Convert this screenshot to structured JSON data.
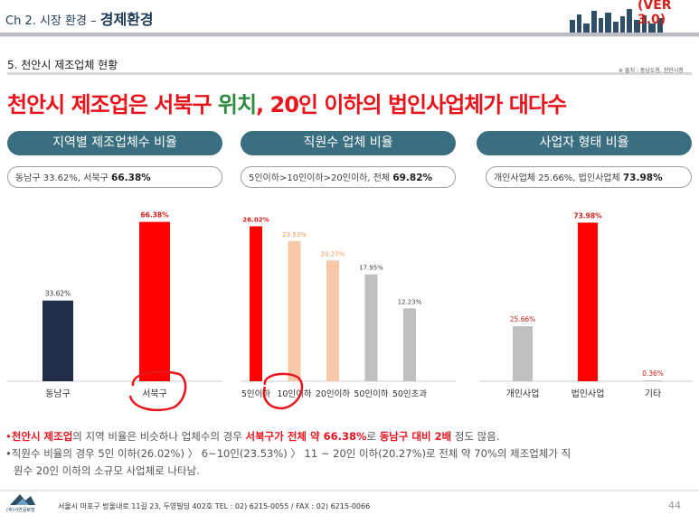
{
  "header": {
    "chapter": "Ch 2. 시장 환경",
    "dash": " – ",
    "title": "경제환경",
    "version": "(VER 3.0)"
  },
  "section_title": "5. 천안시 제조업체 현황",
  "source": "※ 출처 : 충남도청, 천안시청",
  "headline": {
    "part1": "천안시 제조업은 ",
    "part2": "서북구",
    "part3": " 위치",
    "part4": ", 20인 이하의 법인사업체가 대다수"
  },
  "panels": [
    {
      "title": "지역별 제조업체수 비율",
      "summary_text": "동남구 33.62%, 서북구 ",
      "summary_bold": "66.38%"
    },
    {
      "title": "직원수 업체 비율",
      "summary_text": "5인이하>10인이하>20인이하, 전체 ",
      "summary_bold": "69.82%"
    },
    {
      "title": "사업자 형태 비율",
      "summary_text": "개인사업체 25.66%, 법인사업체 ",
      "summary_bold": "73.98%"
    }
  ],
  "chart_data": [
    {
      "type": "bar",
      "categories": [
        "동남구",
        "서북구"
      ],
      "values": [
        33.62,
        66.38
      ],
      "labels": [
        "33.62%",
        "66.38%"
      ],
      "colors": [
        "#1f2f4a",
        "#ff0000"
      ],
      "ylim": [
        0,
        70
      ]
    },
    {
      "type": "bar",
      "categories": [
        "5인이하",
        "10인이하",
        "20인이하",
        "50인이하",
        "50인초과"
      ],
      "values": [
        26.02,
        23.53,
        20.27,
        17.95,
        12.23
      ],
      "labels": [
        "26.02%",
        "23.53%",
        "20.27%",
        "17.95%",
        "12.23%"
      ],
      "colors": [
        "#ff0000",
        "#f7c9a8",
        "#f7c9a8",
        "#bfbfbf",
        "#bfbfbf"
      ],
      "label_colors": [
        "#d1211a",
        "#e8964f",
        "#e8964f",
        "#444444",
        "#444444"
      ],
      "ylim": [
        0,
        27
      ]
    },
    {
      "type": "bar",
      "categories": [
        "개인사업",
        "법인사업",
        "기타"
      ],
      "values": [
        25.66,
        73.98,
        0.36
      ],
      "labels": [
        "25.66%",
        "73.98%",
        "0.36%"
      ],
      "colors": [
        "#bfbfbf",
        "#ff0000",
        "#bfbfbf"
      ],
      "label_colors": [
        "#d1211a",
        "#d1211a",
        "#d1211a"
      ],
      "ylim": [
        0,
        75
      ]
    }
  ],
  "notes": {
    "line1": {
      "a": "천안시 제조업",
      "b": "의 지역 비율은 비슷하나 업체수의 경우 ",
      "c": "서북구가 전체 약 66.38%",
      "d": "로 ",
      "e": "동남구 대비 2배",
      "f": " 정도 많음."
    },
    "line2": "직원수 비율의 경우 5인 이하(26.02%) 〉 6~10인(23.53%) 〉 11 ~ 20인 이하(20.27%)로 전체 약 70%의 제조업체가 직",
    "line3": "원수 20인 이하의 소규모 사업체로 나타남."
  },
  "footer": {
    "logo_text": "(주)서연글로벌",
    "address": "서울시 마포구 방울내로 11길 23, 두영빌딩 402호     TEL : 02) 6215-0055 / FAX : 02) 6215-0066",
    "page": "44"
  }
}
